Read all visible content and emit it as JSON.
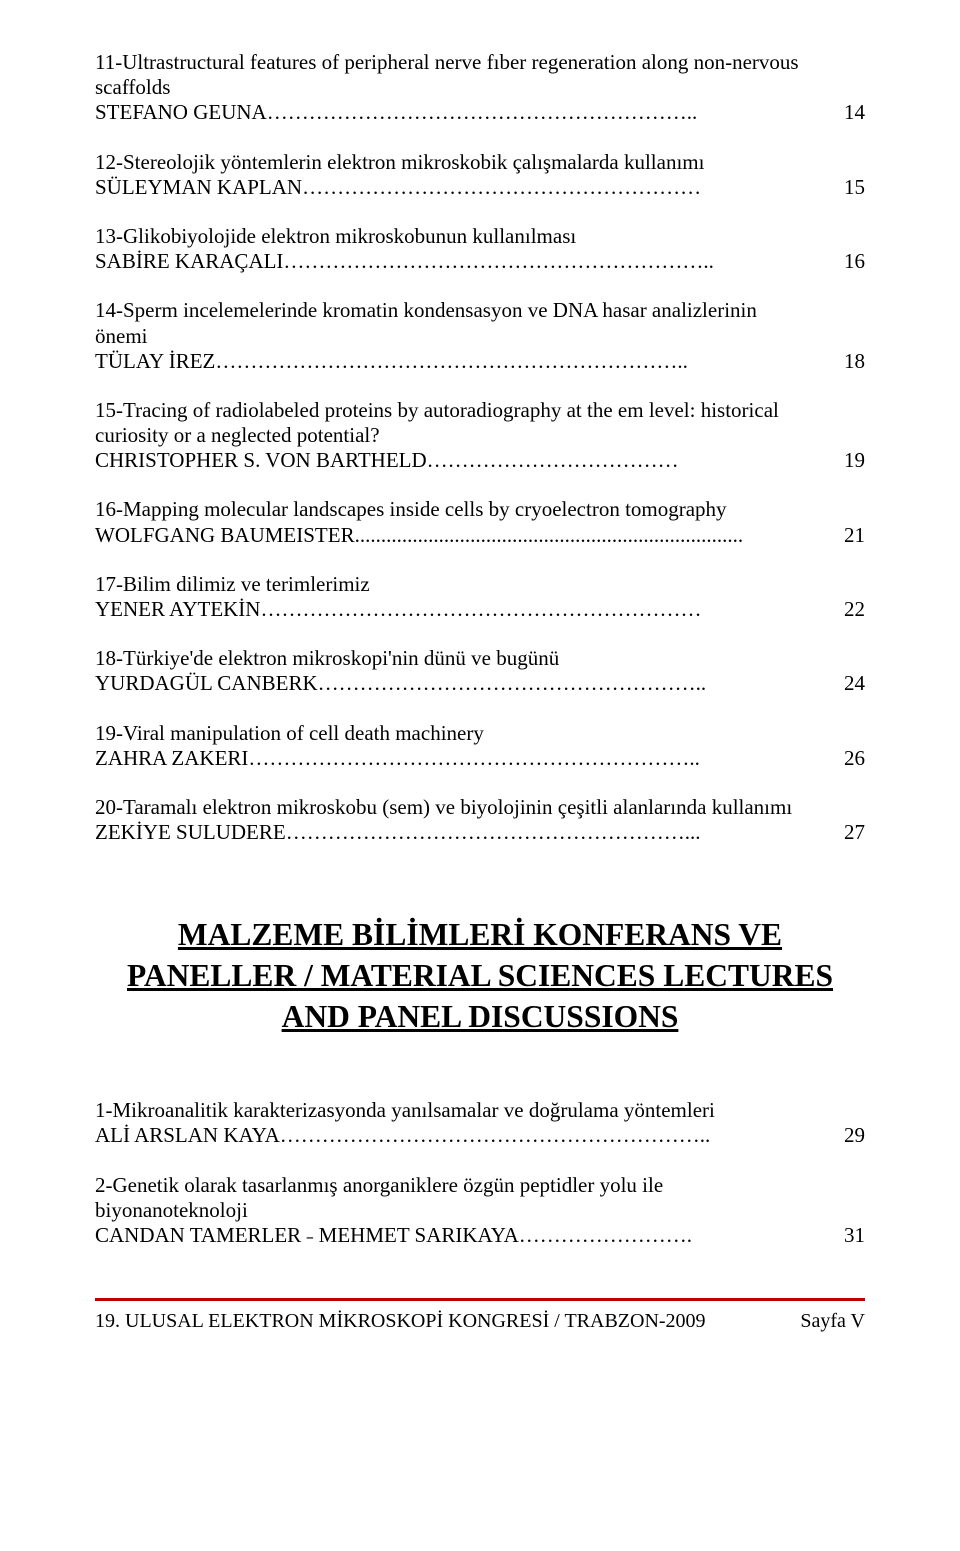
{
  "entries_top": [
    {
      "title": "11-Ultrastructural features of peripheral nerve fıber regeneration along non-nervous scaffolds",
      "author": "STEFANO GEUNA……………………………………………………..",
      "page": "14"
    },
    {
      "title": "12-Stereolojik yöntemlerin elektron mikroskobik çalışmalarda kullanımı",
      "author": "SÜLEYMAN KAPLAN…………………………………………………",
      "page": "15"
    },
    {
      "title": "13-Glikobiyolojide elektron mikroskobunun kullanılması",
      "author": "SABİRE KARAÇALI……………………………………………………..",
      "page": "16"
    },
    {
      "title": "14-Sperm incelemelerinde kromatin kondensasyon ve DNA hasar analizlerinin önemi",
      "author": "TÜLAY İREZ…………………………………………………………..",
      "page": "18"
    },
    {
      "title": "15-Tracing of radiolabeled proteins by autoradiography at the em level: historical  curiosity or a neglected potential?",
      "author": "CHRISTOPHER S. VON BARTHELD………………………………",
      "page": "19"
    },
    {
      "title": "16-Mapping molecular landscapes inside cells by cryoelectron tomography",
      "author": "WOLFGANG BAUMEISTER..........................................................................",
      "page": "21"
    },
    {
      "title": "17-Bilim dilimiz ve terimlerimiz",
      "author": "YENER AYTEKİN………………………………………………………",
      "page": "22"
    },
    {
      "title": "18-Türkiye'de elektron mikroskopi'nin dünü ve bugünü",
      "author": "YURDAGÜL CANBERK………………………………………………..",
      "page": "24"
    },
    {
      "title": "19-Viral manipulation of cell death machinery",
      "author": "ZAHRA ZAKERI………………………………………………………..",
      "page": "26"
    },
    {
      "title": "20-Taramalı elektron mikroskobu (sem) ve biyolojinin çeşitli alanlarında kullanımı",
      "author": "ZEKİYE SULUDERE…………………………………………………...",
      "page": "27"
    }
  ],
  "section_heading": "MALZEME BİLİMLERİ  KONFERANS VE PANELLER / MATERIAL SCIENCES LECTURES AND PANEL DISCUSSIONS",
  "entries_bottom": [
    {
      "title": "1-Mikroanalitik karakterizasyonda yanılsamalar ve doğrulama yöntemleri",
      "author": "ALİ ARSLAN KAYA……………………………………………………..",
      "page": "29"
    },
    {
      "title": "2-Genetik olarak tasarlanmış anorganiklere özgün peptidler yolu ile biyonanoteknoloji",
      "author": "CANDAN TAMERLER ˗ MEHMET SARIKAYA…………………….",
      "page": "31"
    }
  ],
  "footer": {
    "left": "19. ULUSAL ELEKTRON MİKROSKOPİ KONGRESİ / TRABZON-2009",
    "right": "Sayfa V"
  },
  "colors": {
    "separator": "#c00000",
    "text": "#000000",
    "background": "#ffffff"
  }
}
